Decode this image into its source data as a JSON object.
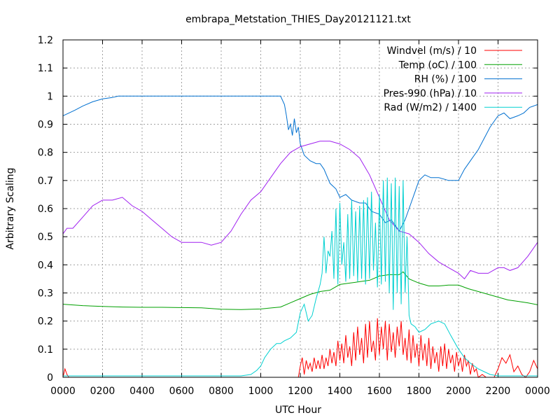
{
  "chart_data": {
    "type": "line",
    "title": "embrapa_Metstation_THIES_Day20121121.txt",
    "xlabel": "UTC Hour",
    "ylabel": "Arbitrary Scaling",
    "xlim": [
      0,
      24
    ],
    "ylim": [
      0,
      1.2
    ],
    "grid": true,
    "legend_position": "top-right",
    "x_tick_values": [
      0,
      2,
      4,
      6,
      8,
      10,
      12,
      14,
      16,
      18,
      20,
      22,
      24
    ],
    "x_tick_labels": [
      "0000",
      "0200",
      "0400",
      "0600",
      "0800",
      "1000",
      "1200",
      "1400",
      "1600",
      "1800",
      "2000",
      "2200",
      "0000"
    ],
    "y_tick_values": [
      0,
      0.1,
      0.2,
      0.3,
      0.4,
      0.5,
      0.6,
      0.7,
      0.8,
      0.9,
      1.0,
      1.1,
      1.2
    ],
    "y_tick_labels": [
      "0",
      "0.1",
      "0.2",
      "0.3",
      "0.4",
      "0.5",
      "0.6",
      "0.7",
      "0.8",
      "0.9",
      "1",
      "1.1",
      "1.2"
    ],
    "series": [
      {
        "name": "Windvel (m/s) / 10",
        "color": "#ff0000",
        "x": [
          0,
          0.1,
          0.2,
          0.3,
          0.5,
          11.9,
          12.0,
          12.1,
          12.2,
          12.3,
          12.4,
          12.5,
          12.6,
          12.7,
          12.8,
          12.9,
          13.0,
          13.1,
          13.2,
          13.3,
          13.4,
          13.5,
          13.6,
          13.7,
          13.8,
          13.9,
          14.0,
          14.1,
          14.2,
          14.3,
          14.4,
          14.5,
          14.6,
          14.7,
          14.8,
          14.9,
          15.0,
          15.1,
          15.2,
          15.3,
          15.4,
          15.5,
          15.6,
          15.7,
          15.8,
          15.9,
          16.0,
          16.1,
          16.2,
          16.3,
          16.4,
          16.5,
          16.6,
          16.7,
          16.8,
          16.9,
          17.0,
          17.1,
          17.2,
          17.3,
          17.4,
          17.5,
          17.6,
          17.7,
          17.8,
          17.9,
          18.0,
          18.1,
          18.2,
          18.3,
          18.4,
          18.5,
          18.6,
          18.7,
          18.8,
          18.9,
          19.0,
          19.1,
          19.2,
          19.3,
          19.4,
          19.5,
          19.6,
          19.7,
          19.8,
          19.9,
          20.0,
          20.1,
          20.2,
          20.3,
          20.4,
          20.5,
          20.6,
          20.7,
          20.8,
          20.9,
          21.0,
          21.2,
          21.4,
          21.6,
          21.8,
          22.0,
          22.2,
          22.4,
          22.6,
          22.8,
          23.0,
          23.2,
          23.4,
          23.6,
          23.8,
          24.0
        ],
        "y": [
          0.0,
          0.03,
          0.01,
          0.0,
          0.0,
          0.0,
          0.04,
          0.07,
          0.01,
          0.06,
          0.03,
          0.05,
          0.02,
          0.07,
          0.03,
          0.06,
          0.03,
          0.08,
          0.03,
          0.07,
          0.04,
          0.1,
          0.05,
          0.09,
          0.04,
          0.13,
          0.06,
          0.12,
          0.05,
          0.15,
          0.07,
          0.11,
          0.04,
          0.16,
          0.06,
          0.18,
          0.08,
          0.14,
          0.05,
          0.19,
          0.07,
          0.2,
          0.09,
          0.13,
          0.06,
          0.21,
          0.08,
          0.18,
          0.1,
          0.2,
          0.06,
          0.19,
          0.09,
          0.16,
          0.07,
          0.18,
          0.11,
          0.2,
          0.08,
          0.14,
          0.06,
          0.17,
          0.05,
          0.15,
          0.07,
          0.12,
          0.04,
          0.15,
          0.06,
          0.12,
          0.04,
          0.14,
          0.03,
          0.11,
          0.05,
          0.09,
          0.02,
          0.11,
          0.04,
          0.12,
          0.03,
          0.1,
          0.05,
          0.08,
          0.02,
          0.09,
          0.04,
          0.07,
          0.02,
          0.08,
          0.04,
          0.06,
          0.01,
          0.05,
          0.02,
          0.03,
          0.0,
          0.01,
          0.0,
          0.0,
          0.0,
          0.03,
          0.07,
          0.05,
          0.08,
          0.02,
          0.04,
          0.01,
          0.0,
          0.02,
          0.06,
          0.03
        ]
      },
      {
        "name": "Temp (oC) / 100",
        "color": "#00a000",
        "x": [
          0,
          1,
          2,
          3,
          4,
          5,
          6,
          7,
          8,
          9,
          10,
          11,
          11.5,
          12,
          12.5,
          13,
          13.5,
          14,
          14.5,
          15,
          15.5,
          16,
          16.5,
          17,
          17.2,
          17.5,
          18,
          18.5,
          19,
          19.5,
          20,
          20.5,
          21,
          21.5,
          22,
          22.5,
          23,
          23.5,
          24
        ],
        "y": [
          0.26,
          0.255,
          0.252,
          0.25,
          0.249,
          0.249,
          0.248,
          0.247,
          0.242,
          0.241,
          0.243,
          0.25,
          0.265,
          0.28,
          0.295,
          0.305,
          0.31,
          0.33,
          0.335,
          0.34,
          0.345,
          0.36,
          0.365,
          0.365,
          0.375,
          0.35,
          0.335,
          0.325,
          0.325,
          0.328,
          0.328,
          0.315,
          0.305,
          0.295,
          0.285,
          0.275,
          0.27,
          0.265,
          0.258
        ]
      },
      {
        "name": "RH (%) / 100",
        "color": "#0070d0",
        "x": [
          0,
          0.3,
          0.6,
          1.0,
          1.5,
          2.0,
          2.5,
          2.8,
          3.0,
          5,
          7,
          9,
          11,
          11.2,
          11.3,
          11.4,
          11.5,
          11.6,
          11.7,
          11.8,
          11.9,
          12.0,
          12.2,
          12.5,
          12.8,
          13.0,
          13.2,
          13.5,
          13.8,
          14.0,
          14.3,
          14.6,
          15.0,
          15.3,
          15.6,
          16.0,
          16.3,
          16.6,
          17.0,
          17.3,
          17.5,
          17.8,
          18.0,
          18.3,
          18.6,
          19.0,
          19.5,
          20.0,
          20.3,
          20.7,
          21.0,
          21.3,
          21.6,
          22.0,
          22.3,
          22.6,
          23.0,
          23.3,
          23.6,
          24.0
        ],
        "y": [
          0.93,
          0.94,
          0.95,
          0.965,
          0.98,
          0.99,
          0.995,
          1.0,
          1.0,
          1.0,
          1.0,
          1.0,
          1.0,
          0.97,
          0.93,
          0.88,
          0.9,
          0.86,
          0.92,
          0.87,
          0.89,
          0.83,
          0.79,
          0.77,
          0.76,
          0.76,
          0.74,
          0.69,
          0.67,
          0.64,
          0.65,
          0.63,
          0.62,
          0.62,
          0.59,
          0.58,
          0.55,
          0.56,
          0.52,
          0.56,
          0.6,
          0.66,
          0.7,
          0.72,
          0.71,
          0.71,
          0.7,
          0.7,
          0.74,
          0.78,
          0.81,
          0.85,
          0.89,
          0.93,
          0.94,
          0.92,
          0.93,
          0.94,
          0.96,
          0.97
        ]
      },
      {
        "name": "Pres-990 (hPa) / 10",
        "color": "#a020f0",
        "x": [
          0,
          0.2,
          0.5,
          1.0,
          1.5,
          2.0,
          2.5,
          3.0,
          3.5,
          4.0,
          4.5,
          5.0,
          5.5,
          6.0,
          6.5,
          7.0,
          7.5,
          8.0,
          8.5,
          9.0,
          9.5,
          10.0,
          10.5,
          11.0,
          11.5,
          12.0,
          12.5,
          13.0,
          13.5,
          14.0,
          14.5,
          15.0,
          15.5,
          16.0,
          16.5,
          17.0,
          17.5,
          18.0,
          18.5,
          19.0,
          19.5,
          20.0,
          20.3,
          20.6,
          21.0,
          21.5,
          22.0,
          22.3,
          22.6,
          23.0,
          23.5,
          24.0
        ],
        "y": [
          0.51,
          0.53,
          0.53,
          0.57,
          0.61,
          0.63,
          0.63,
          0.64,
          0.61,
          0.59,
          0.56,
          0.53,
          0.5,
          0.48,
          0.48,
          0.48,
          0.47,
          0.48,
          0.52,
          0.58,
          0.63,
          0.66,
          0.71,
          0.76,
          0.8,
          0.82,
          0.83,
          0.84,
          0.84,
          0.83,
          0.81,
          0.78,
          0.72,
          0.64,
          0.56,
          0.52,
          0.51,
          0.48,
          0.44,
          0.41,
          0.39,
          0.37,
          0.35,
          0.38,
          0.37,
          0.37,
          0.39,
          0.39,
          0.38,
          0.39,
          0.43,
          0.48
        ]
      },
      {
        "name": "Rad (W/m2) / 1400",
        "color": "#00d0d0",
        "x": [
          0,
          9.0,
          9.5,
          9.8,
          10.0,
          10.2,
          10.5,
          10.8,
          11.0,
          11.2,
          11.5,
          11.8,
          12.0,
          12.2,
          12.4,
          12.6,
          12.8,
          13.0,
          13.1,
          13.2,
          13.3,
          13.4,
          13.5,
          13.6,
          13.7,
          13.8,
          13.9,
          14.0,
          14.1,
          14.2,
          14.3,
          14.4,
          14.5,
          14.6,
          14.7,
          14.8,
          14.9,
          15.0,
          15.1,
          15.2,
          15.3,
          15.4,
          15.5,
          15.6,
          15.7,
          15.8,
          15.9,
          16.0,
          16.1,
          16.2,
          16.3,
          16.4,
          16.5,
          16.6,
          16.7,
          16.8,
          16.9,
          17.0,
          17.1,
          17.2,
          17.3,
          17.4,
          17.5,
          17.6,
          17.8,
          18.0,
          18.3,
          18.6,
          19.0,
          19.3,
          19.6,
          20.0,
          20.3,
          20.6,
          21.0,
          21.3,
          21.6,
          22.0,
          22.5,
          24.0
        ],
        "y": [
          0.005,
          0.005,
          0.01,
          0.025,
          0.04,
          0.07,
          0.1,
          0.12,
          0.12,
          0.13,
          0.14,
          0.16,
          0.23,
          0.26,
          0.2,
          0.22,
          0.28,
          0.33,
          0.37,
          0.5,
          0.37,
          0.45,
          0.43,
          0.52,
          0.35,
          0.6,
          0.33,
          0.62,
          0.4,
          0.48,
          0.34,
          0.58,
          0.35,
          0.63,
          0.36,
          0.59,
          0.34,
          0.61,
          0.35,
          0.63,
          0.33,
          0.64,
          0.35,
          0.66,
          0.38,
          0.55,
          0.32,
          0.65,
          0.33,
          0.7,
          0.34,
          0.71,
          0.3,
          0.69,
          0.24,
          0.71,
          0.3,
          0.68,
          0.26,
          0.7,
          0.3,
          0.5,
          0.22,
          0.19,
          0.18,
          0.16,
          0.17,
          0.19,
          0.2,
          0.19,
          0.15,
          0.1,
          0.07,
          0.05,
          0.03,
          0.02,
          0.01,
          0.005,
          0.005,
          0.005
        ]
      }
    ]
  }
}
